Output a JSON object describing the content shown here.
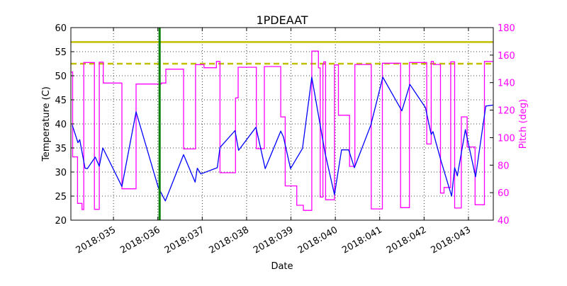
{
  "chart_data": {
    "type": "line",
    "title": "1PDEAAT",
    "xlabel": "Date",
    "ylabel": "Temperature (C)",
    "y2label": "Pitch (deg)",
    "xlim": [
      34.04,
      43.56
    ],
    "ylim": [
      20,
      60
    ],
    "y2lim": [
      40,
      180
    ],
    "grid": true,
    "x_ticks": [
      {
        "value": 35,
        "label": "2018:035"
      },
      {
        "value": 36,
        "label": "2018:036"
      },
      {
        "value": 37,
        "label": "2018:037"
      },
      {
        "value": 38,
        "label": "2018:038"
      },
      {
        "value": 39,
        "label": "2018:039"
      },
      {
        "value": 40,
        "label": "2018:040"
      },
      {
        "value": 41,
        "label": "2018:041"
      },
      {
        "value": 42,
        "label": "2018:042"
      },
      {
        "value": 43,
        "label": "2018:043"
      }
    ],
    "y_ticks": [
      20,
      25,
      30,
      35,
      40,
      45,
      50,
      55,
      60
    ],
    "y2_ticks": [
      40,
      60,
      80,
      100,
      120,
      140,
      160,
      180
    ],
    "colors": {
      "temperature": "#0000ff",
      "pitch": "#ff00ff",
      "limit": "#bfbf00",
      "marker": "#008000"
    },
    "limits": [
      {
        "value": 57,
        "style": "solid"
      },
      {
        "value": 52.5,
        "style": "dashed"
      }
    ],
    "vertical_marker": 36.04,
    "series": [
      {
        "axis": "left",
        "x": [
          34.07,
          34.2,
          34.24,
          34.36,
          34.41,
          34.59,
          34.68,
          34.76,
          35.19,
          35.51,
          36.01,
          36.17,
          36.58,
          36.84,
          36.89,
          36.97,
          37.34,
          37.4,
          37.74,
          37.82,
          38.21,
          38.42,
          38.77,
          38.83,
          38.99,
          39.26,
          39.47,
          39.77,
          39.98,
          40.14,
          40.3,
          40.43,
          40.8,
          41.07,
          41.5,
          41.68,
          42.03,
          42.16,
          42.2,
          42.38,
          42.62,
          42.69,
          42.75,
          42.93,
          43.16,
          43.39,
          43.55
        ],
        "y": [
          39.75,
          36.1,
          36.7,
          30.8,
          30.7,
          33.1,
          31.2,
          35.0,
          27.0,
          42.5,
          26.8,
          24.0,
          33.6,
          27.9,
          30.8,
          29.6,
          30.9,
          35.1,
          38.6,
          34.5,
          39.3,
          30.7,
          38.5,
          37.3,
          30.7,
          34.9,
          49.7,
          33.9,
          25.3,
          34.6,
          34.6,
          30.9,
          39.75,
          49.7,
          42.7,
          48.2,
          43.4,
          37.8,
          38.4,
          32.4,
          25.0,
          30.9,
          29.2,
          38.8,
          29.0,
          43.7,
          43.9
        ]
      },
      {
        "axis": "right",
        "step": "post",
        "x": [
          34.04,
          34.08,
          34.19,
          34.29,
          34.33,
          34.57,
          34.68,
          34.77,
          35.19,
          35.51,
          36.08,
          36.18,
          36.58,
          36.85,
          37.04,
          37.32,
          37.4,
          37.75,
          37.81,
          38.22,
          38.4,
          38.77,
          38.87,
          39.13,
          39.28,
          39.47,
          39.62,
          39.66,
          39.72,
          39.74,
          39.78,
          39.98,
          40.07,
          40.32,
          40.44,
          40.81,
          41.06,
          41.47,
          41.67,
          42.06,
          42.16,
          42.21,
          42.37,
          42.45,
          42.6,
          42.69,
          42.84,
          42.97,
          43.15,
          43.36,
          43.56
        ],
        "y": [
          147.7,
          86.0,
          52.2,
          47.7,
          154.6,
          47.9,
          154.9,
          139.7,
          62.8,
          139.0,
          139.7,
          149.8,
          91.8,
          153.1,
          150.8,
          155.4,
          74.5,
          128.9,
          151.2,
          92.0,
          151.7,
          115.1,
          64.9,
          50.8,
          47.1,
          162.9,
          150.7,
          56.8,
          153.4,
          155.1,
          54.8,
          152.9,
          116.3,
          79.1,
          153.2,
          48.2,
          154.1,
          49.1,
          154.6,
          95.4,
          155.4,
          153.2,
          59.7,
          63.8,
          155.1,
          48.8,
          115.1,
          93.2,
          51.2,
          155.4,
          155.4
        ]
      }
    ]
  }
}
